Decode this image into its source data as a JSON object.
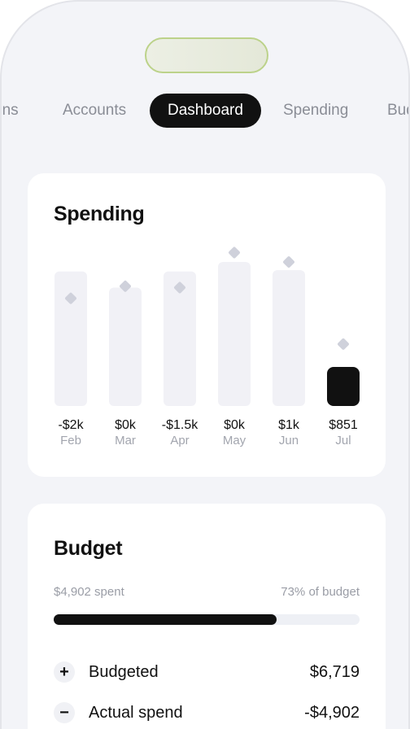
{
  "tabs": [
    {
      "label": "ons"
    },
    {
      "label": "Accounts"
    },
    {
      "label": "Dashboard"
    },
    {
      "label": "Spending"
    },
    {
      "label": "Bud"
    }
  ],
  "spending": {
    "title": "Spending"
  },
  "chart_data": {
    "type": "bar",
    "categories": [
      "Feb",
      "Mar",
      "Apr",
      "May",
      "Jun",
      "Jul"
    ],
    "value_labels": [
      "-$2k",
      "$0k",
      "-$1.5k",
      "$0k",
      "$1k",
      "$851"
    ],
    "series": [
      {
        "values": [
          1000,
          880,
          1000,
          1070,
          1010,
          290
        ]
      },
      {
        "values": [
          800,
          890,
          880,
          1140,
          1070,
          460
        ]
      }
    ],
    "highlight_index": 5,
    "ylim": [
      0,
      1300
    ],
    "colors": {
      "bar": "#f1f1f6",
      "highlight": "#111111",
      "marker": "#cfd1db"
    }
  },
  "budget": {
    "title": "Budget",
    "spent_text": "$4,902 spent",
    "percent_text": "73% of budget",
    "progress_fraction": 0.73,
    "rows": [
      {
        "icon": "+",
        "label": "Budgeted",
        "value": "$6,719"
      },
      {
        "icon": "−",
        "label": "Actual spend",
        "value": "-$4,902"
      }
    ]
  }
}
